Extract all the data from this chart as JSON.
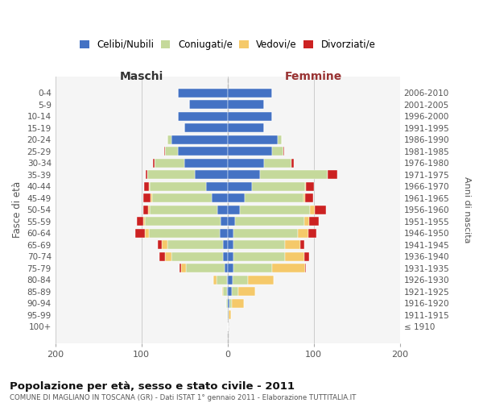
{
  "age_groups": [
    "100+",
    "95-99",
    "90-94",
    "85-89",
    "80-84",
    "75-79",
    "70-74",
    "65-69",
    "60-64",
    "55-59",
    "50-54",
    "45-49",
    "40-44",
    "35-39",
    "30-34",
    "25-29",
    "20-24",
    "15-19",
    "10-14",
    "5-9",
    "0-4"
  ],
  "birth_years": [
    "≤ 1910",
    "1911-1915",
    "1916-1920",
    "1921-1925",
    "1926-1930",
    "1931-1935",
    "1936-1940",
    "1941-1945",
    "1946-1950",
    "1951-1955",
    "1956-1960",
    "1961-1965",
    "1966-1970",
    "1971-1975",
    "1976-1980",
    "1981-1985",
    "1986-1990",
    "1991-1995",
    "1996-2000",
    "2001-2005",
    "2006-2010"
  ],
  "maschi_celibe": [
    0,
    0,
    0,
    1,
    1,
    3,
    5,
    5,
    9,
    8,
    12,
    18,
    25,
    38,
    50,
    58,
    65,
    50,
    58,
    45,
    58
  ],
  "maschi_coniugato": [
    0,
    1,
    2,
    4,
    12,
    45,
    60,
    65,
    82,
    88,
    78,
    70,
    65,
    55,
    35,
    15,
    5,
    0,
    0,
    0,
    0
  ],
  "maschi_vedovo": [
    0,
    0,
    0,
    1,
    4,
    6,
    8,
    6,
    5,
    2,
    2,
    1,
    1,
    0,
    0,
    0,
    0,
    0,
    0,
    0,
    0
  ],
  "maschi_divorziato": [
    0,
    0,
    0,
    0,
    0,
    2,
    6,
    5,
    11,
    7,
    6,
    9,
    6,
    2,
    2,
    1,
    0,
    0,
    0,
    0,
    0
  ],
  "femmine_nubile": [
    0,
    1,
    2,
    5,
    6,
    7,
    7,
    7,
    7,
    9,
    14,
    20,
    28,
    38,
    42,
    52,
    58,
    42,
    52,
    42,
    52
  ],
  "femmine_coniugata": [
    0,
    0,
    3,
    7,
    18,
    45,
    60,
    60,
    75,
    80,
    82,
    68,
    62,
    78,
    32,
    13,
    5,
    0,
    0,
    0,
    0
  ],
  "femmine_vedova": [
    0,
    3,
    14,
    20,
    30,
    38,
    22,
    17,
    12,
    6,
    5,
    2,
    1,
    0,
    0,
    0,
    0,
    0,
    0,
    0,
    0
  ],
  "femmine_divorziata": [
    0,
    0,
    0,
    0,
    0,
    1,
    6,
    5,
    9,
    11,
    13,
    9,
    9,
    11,
    3,
    1,
    0,
    0,
    0,
    0,
    0
  ],
  "color_celibe": "#4472C4",
  "color_coniugato": "#C5D99B",
  "color_vedovo": "#F5C96A",
  "color_divorziato": "#CC2222",
  "legend_labels": [
    "Celibi/Nubili",
    "Coniugati/e",
    "Vedovi/e",
    "Divorziati/e"
  ],
  "title": "Popolazione per età, sesso e stato civile - 2011",
  "subtitle": "COMUNE DI MAGLIANO IN TOSCANA (GR) - Dati ISTAT 1° gennaio 2011 - Elaborazione TUTTITALIA.IT",
  "xlabel_left": "Maschi",
  "xlabel_right": "Femmine",
  "ylabel_left": "Fasce di età",
  "ylabel_right": "Anni di nascita",
  "xlim": 200
}
